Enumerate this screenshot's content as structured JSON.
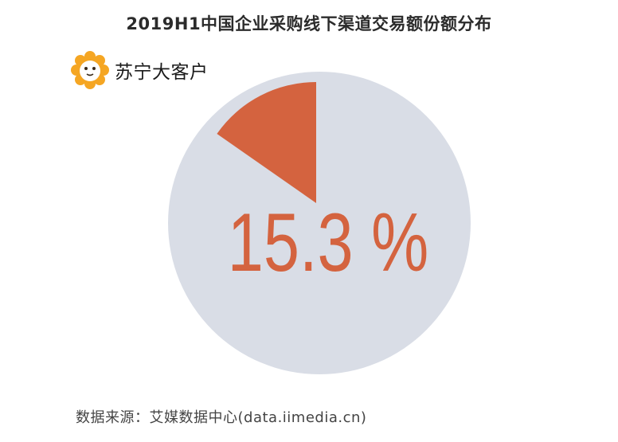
{
  "header": {
    "title": "2019H1中国企业采购线下渠道交易额份额分布"
  },
  "brand": {
    "name": "苏宁大客户",
    "logo_icon": "lion-face-icon",
    "logo_color": "#f5a623"
  },
  "chart_data": {
    "type": "pie",
    "slices": [
      {
        "value": 15.3,
        "color": "#d4633f"
      },
      {
        "value": 84.7,
        "color": "#d9dde6"
      }
    ],
    "label": "15.3 %",
    "label_color": "#d4633f"
  },
  "footer": {
    "source": "数据来源：艾媒数据中心(data.iimedia.cn)"
  }
}
